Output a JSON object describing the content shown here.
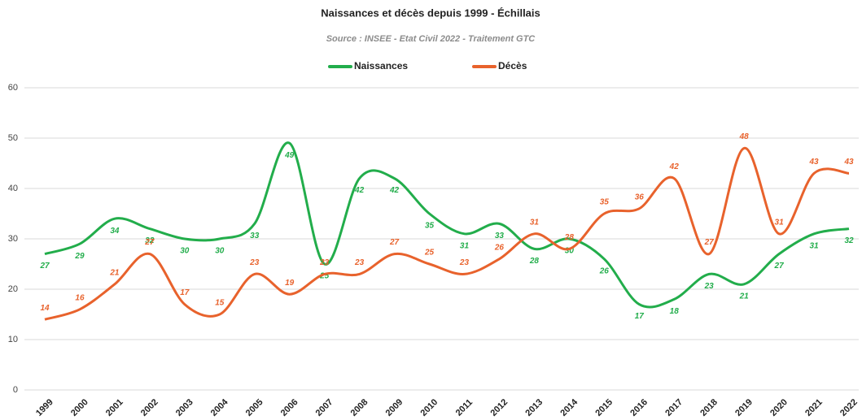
{
  "chart_data": {
    "type": "line",
    "title": "Naissances et décès depuis 1999 - Échillais",
    "subtitle": "Source : INSEE - Etat Civil 2022 - Traitement GTC",
    "categories": [
      "1999",
      "2000",
      "2001",
      "2002",
      "2003",
      "2004",
      "2005",
      "2006",
      "2007",
      "2008",
      "2009",
      "2010",
      "2011",
      "2012",
      "2013",
      "2014",
      "2015",
      "2016",
      "2017",
      "2018",
      "2019",
      "2020",
      "2021",
      "2022"
    ],
    "series": [
      {
        "name": "Naissances",
        "color": "#22ad4b",
        "values": [
          27,
          29,
          34,
          32,
          30,
          30,
          33,
          49,
          25,
          42,
          42,
          35,
          31,
          33,
          28,
          30,
          26,
          17,
          18,
          23,
          21,
          27,
          31,
          32
        ]
      },
      {
        "name": "Décès",
        "color": "#e8622c",
        "values": [
          14,
          16,
          21,
          27,
          17,
          15,
          23,
          19,
          23,
          23,
          27,
          25,
          23,
          26,
          31,
          28,
          35,
          36,
          42,
          27,
          48,
          31,
          43,
          43
        ]
      }
    ],
    "ylim": [
      0,
      60
    ],
    "yticks": [
      0,
      10,
      20,
      30,
      40,
      50,
      60
    ],
    "grid": true,
    "legend": "top"
  }
}
